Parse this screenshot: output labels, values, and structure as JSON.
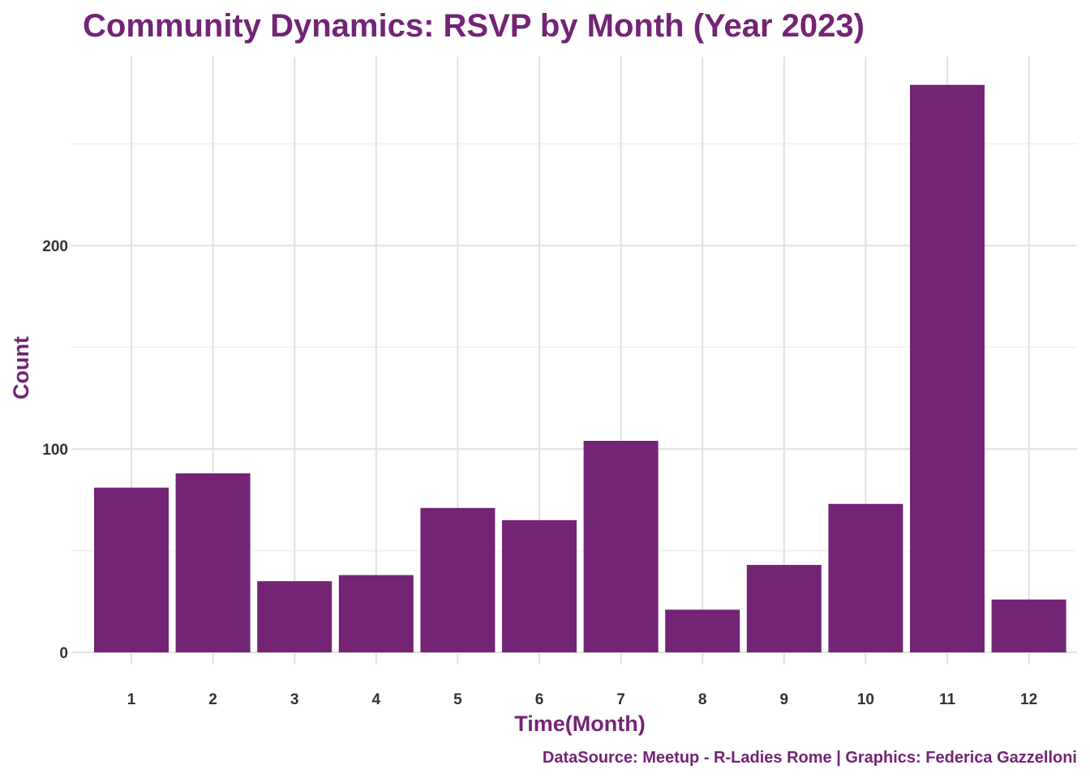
{
  "chart_data": {
    "type": "bar",
    "title": "Community Dynamics: RSVP by Month (Year 2023)",
    "xlabel": "Time(Month)",
    "ylabel": "Count",
    "caption": "DataSource: Meetup - R-Ladies Rome | Graphics: Federica Gazzelloni",
    "categories": [
      "1",
      "2",
      "3",
      "4",
      "5",
      "6",
      "7",
      "8",
      "9",
      "10",
      "11",
      "12"
    ],
    "values": [
      81,
      88,
      35,
      38,
      71,
      65,
      104,
      21,
      43,
      73,
      279,
      26
    ],
    "ylim": [
      0,
      279
    ],
    "yticks": [
      0,
      100,
      200
    ],
    "ytick_labels": [
      "0",
      "100",
      "200"
    ],
    "grid": true,
    "legend": "none"
  },
  "colors": {
    "bar": "#732475",
    "title": "#732475",
    "axis_title": "#732475",
    "caption": "#732475"
  }
}
